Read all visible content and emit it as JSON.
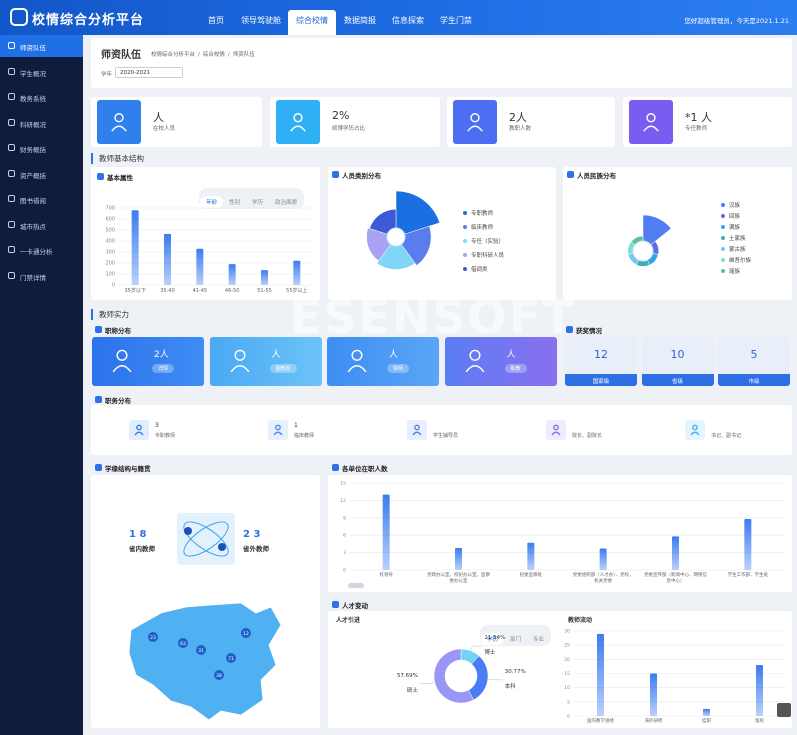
{
  "topbar": {
    "logo": "校情综合分析平台",
    "nav": [
      {
        "label": "首页"
      },
      {
        "label": "领导驾驶舱"
      },
      {
        "label": "综合校情",
        "active": true
      },
      {
        "label": "数据简报"
      },
      {
        "label": "信息探索"
      },
      {
        "label": "学生门禁"
      }
    ],
    "greeting": "您好超级管理员，今天是2021.1.21"
  },
  "sidebar": [
    {
      "label": "师资队伍",
      "active": true
    },
    {
      "label": "学生概况"
    },
    {
      "label": "教务系统"
    },
    {
      "label": "科研概况"
    },
    {
      "label": "财务概括"
    },
    {
      "label": "资产概括"
    },
    {
      "label": "图书借阅"
    },
    {
      "label": "城市热点"
    },
    {
      "label": "一卡通分析"
    },
    {
      "label": "门禁详情"
    }
  ],
  "page_header": {
    "title": "师资队伍",
    "breadcrumb": [
      "校情综合分析平台",
      "综合校情",
      "师资队伍"
    ],
    "year_label": "学年",
    "year": "2020-2021"
  },
  "stats": [
    {
      "value": "人",
      "label": "在校人员",
      "color": "#2f7fec"
    },
    {
      "value": "2%",
      "label": "硕博学历占比",
      "color": "#2fb0f4"
    },
    {
      "value": "2人",
      "label": "教职人数",
      "color": "#4c6ef2"
    },
    {
      "value": "*1 人",
      "label": "专任教师",
      "color": "#7a5cf0"
    }
  ],
  "sections": [
    "教师基本结构",
    "教师实力"
  ],
  "basic_tabs": [
    {
      "label": "年龄",
      "active": true
    },
    {
      "label": "性别"
    },
    {
      "label": "学历"
    },
    {
      "label": "政治面貌"
    }
  ],
  "title_dist": {
    "title": "职称分布",
    "items": [
      {
        "value": "2人",
        "button": "详情"
      },
      {
        "value": "人",
        "button": "副教授"
      },
      {
        "value": "人",
        "button": "讲师"
      },
      {
        "value": "人",
        "button": "助教"
      }
    ]
  },
  "awards": {
    "title": "获奖情况",
    "items": [
      {
        "value": 12,
        "label": "国家级"
      },
      {
        "value": 10,
        "label": "省级"
      },
      {
        "value": 5,
        "label": "市级"
      }
    ]
  },
  "duty": {
    "title": "职务分布",
    "items": [
      {
        "value": "3",
        "label": "专职教师"
      },
      {
        "value": "1",
        "label": "临床教师"
      },
      {
        "label": "学生辅导员"
      },
      {
        "label": "院长、副院长"
      },
      {
        "label": "书记、副书记"
      }
    ]
  },
  "origin": {
    "title": "学缘结构与籍贯",
    "inside": {
      "value": "1 8",
      "label": "省内教师"
    },
    "outside": {
      "value": "2 3",
      "label": "省外教师"
    },
    "map_labels": [
      "23",
      "63",
      "31",
      "71",
      "38",
      "12"
    ]
  },
  "talent": {
    "title": "人才变动",
    "intro_title": "人才引进",
    "tabs": [
      {
        "label": "学历",
        "active": true
      },
      {
        "label": "部门"
      },
      {
        "label": "专业"
      }
    ],
    "flow_title": "教师流动"
  },
  "watermark": "ESENSOFT",
  "chart_data": [
    {
      "type": "bar",
      "title": "基本属性",
      "categories": [
        "35岁以下",
        "35-40",
        "41-45",
        "46-50",
        "51-55",
        "55岁以上"
      ],
      "values": [
        680,
        465,
        330,
        190,
        135,
        220
      ],
      "color": "#3b7cf0",
      "ylim": [
        0,
        700
      ],
      "yticks": [
        0,
        100,
        200,
        300,
        400,
        500,
        600,
        700
      ],
      "grid": true
    },
    {
      "type": "pie",
      "rose": true,
      "title": "人员类别分布",
      "categories": [
        "专职教师",
        "临床教师",
        "专任（实验）",
        "专职科研人员",
        "借调类"
      ],
      "values": [
        40,
        18,
        14,
        10,
        8
      ],
      "colors": [
        "#1b6fe0",
        "#5b7dec",
        "#7fd6f6",
        "#a9a2f2",
        "#3d5ad8"
      ]
    },
    {
      "type": "pie",
      "rose": true,
      "title": "人员民族分布",
      "categories": [
        "汉族",
        "回族",
        "满族",
        "土家族",
        "蒙古族",
        "维吾尔族",
        "瑶族"
      ],
      "values": [
        1000,
        6,
        5,
        4,
        3,
        3,
        2
      ],
      "colors": [
        "#4f7df2",
        "#5a6ee8",
        "#2fa6e8",
        "#3ab0b0",
        "#73c6f5",
        "#7be0d2",
        "#5bc0a0"
      ]
    },
    {
      "type": "bar",
      "title": "各单位在职人数",
      "categories": [
        "校领导",
        "党政办公室，校纪办公室，监察委办公室",
        "纪委监察处",
        "党委组织部（人才办）、党校，机关党委",
        "党委宣传部（新闻中心、网络信息中心）",
        "学生工作部、学生处"
      ],
      "values": [
        13,
        3.8,
        4.7,
        3.7,
        5.8,
        8.8
      ],
      "color": "#3b7cf0",
      "ylim": [
        0,
        15
      ],
      "yticks": [
        0,
        3,
        6,
        9,
        12,
        15
      ],
      "grid": true
    },
    {
      "type": "pie",
      "donut": true,
      "title": "人才引进",
      "categories": [
        "博士",
        "本科",
        "硕士"
      ],
      "values": [
        11.54,
        30.77,
        57.69
      ],
      "value_labels": [
        "11.54%",
        "30.77%",
        "57.69%"
      ],
      "colors": [
        "#6fd3f5",
        "#4a7cf5",
        "#9b95f5"
      ]
    },
    {
      "type": "bar",
      "title": "教师流动",
      "categories": [
        "国内教学进修",
        "海外研修",
        "挂职",
        "留校"
      ],
      "values": [
        29,
        15,
        2.5,
        18
      ],
      "color": "#3b7cf0",
      "ylim": [
        0,
        30
      ],
      "yticks": [
        0,
        5,
        10,
        15,
        20,
        25,
        30
      ],
      "grid": true
    }
  ]
}
